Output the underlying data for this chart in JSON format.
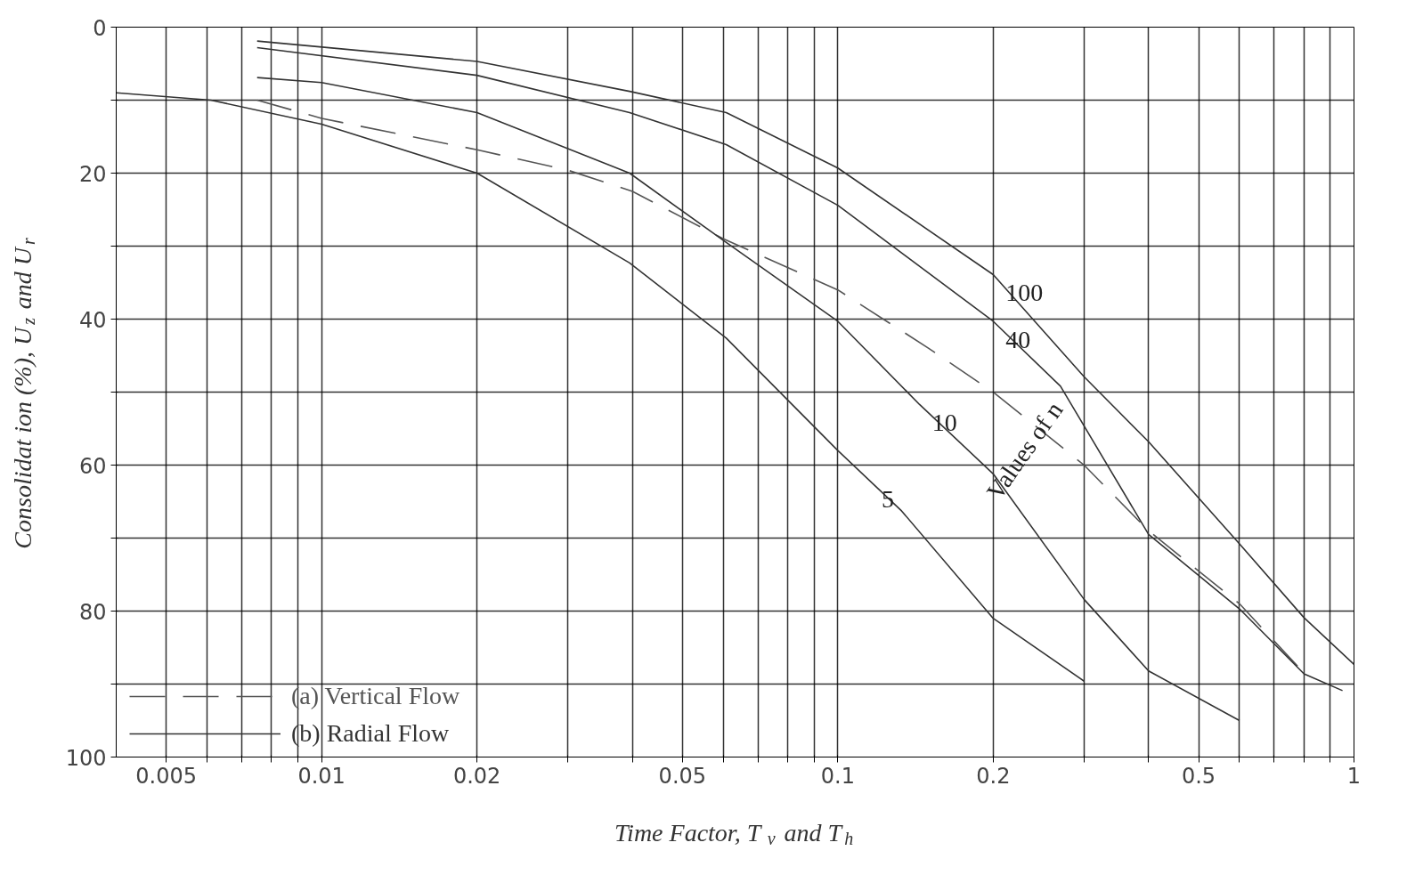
{
  "chart_data": {
    "type": "line",
    "xlabel": "Time Factor, T$_{v}$ and T$_{h}$",
    "ylabel": "Consolidat ion (%), U$_{z}$ and U$_{r}$",
    "log": "x",
    "grid": true,
    "legend": "bottom left",
    "xlim": [
      0.004,
      1
    ],
    "ylim": [
      100,
      0
    ],
    "xticks": [
      0.005,
      {
        "value": 0.006,
        "label": null
      },
      {
        "value": 0.007,
        "label": null
      },
      {
        "value": 0.008,
        "label": null
      },
      {
        "value": 0.009,
        "label": null
      },
      0.01,
      0.02,
      {
        "value": 0.03,
        "label": null
      },
      {
        "value": 0.04,
        "label": null
      },
      0.05,
      {
        "value": 0.06,
        "label": null
      },
      {
        "value": 0.07,
        "label": null
      },
      {
        "value": 0.08,
        "label": null
      },
      {
        "value": 0.09,
        "label": null
      },
      0.1,
      0.2,
      {
        "value": 0.3,
        "label": null
      },
      {
        "value": 0.4,
        "label": null
      },
      0.5,
      {
        "value": 0.6,
        "label": null
      },
      {
        "value": 0.7,
        "label": null
      },
      {
        "value": 0.8,
        "label": null
      },
      {
        "value": 0.9,
        "label": null
      },
      1
    ],
    "yticks": [
      0,
      {
        "value": 10,
        "label": null
      },
      20,
      {
        "value": 30,
        "label": null
      },
      40,
      {
        "value": 50,
        "label": null
      },
      60,
      {
        "value": 70,
        "label": null
      },
      80,
      {
        "value": 90,
        "label": null
      },
      100
    ],
    "series": [
      {
        "name": "(a) Vertical Flow",
        "color": "#555555",
        "line_style": "dashed",
        "x": [
          0.0075,
          0.01,
          0.02,
          0.03,
          0.04,
          0.06,
          0.1,
          0.15,
          0.2,
          0.3,
          0.4,
          0.6,
          0.8
        ],
        "values": [
          10,
          12.5,
          16.8,
          19.6,
          22.5,
          29,
          36,
          44,
          50,
          60,
          69,
          79,
          88.5
        ]
      },
      {
        "name": "(b) Radial Flow",
        "color": "#333333",
        "line_style": "solid",
        "x": [
          0.004,
          0.0061,
          0.01,
          0.02,
          0.0395,
          0.0608,
          0.1,
          0.133,
          0.2,
          0.3
        ],
        "values": [
          9,
          10,
          13.3,
          20,
          32.3,
          42.6,
          58,
          66.3,
          81,
          89.6
        ]
      },
      {
        "color": "#333333",
        "line_style": "solid",
        "x": [
          0.0075,
          0.01,
          0.02,
          0.0395,
          0.0608,
          0.1,
          0.144,
          0.2,
          0.3,
          0.4,
          0.6
        ],
        "values": [
          6.9,
          7.6,
          11.7,
          20,
          29.5,
          40.3,
          51.7,
          61.2,
          78.4,
          88.2,
          95
        ]
      },
      {
        "color": "#333333",
        "line_style": "solid",
        "x": [
          0.0075,
          0.02,
          0.0395,
          0.0608,
          0.1,
          0.2,
          0.27,
          0.4,
          0.6,
          0.8,
          0.95
        ],
        "values": [
          2.8,
          6.6,
          11.7,
          16.1,
          24.4,
          40.3,
          49.2,
          69.5,
          79.7,
          88.6,
          90.9
        ]
      },
      {
        "color": "#333333",
        "line_style": "solid",
        "x": [
          0.0075,
          0.02,
          0.0395,
          0.0608,
          0.1,
          0.2,
          0.3,
          0.4,
          0.6,
          0.8,
          1
        ],
        "values": [
          1.9,
          4.7,
          8.8,
          11.7,
          19.3,
          33.9,
          47.9,
          56.8,
          70.8,
          80.9,
          87.3
        ]
      }
    ],
    "annotations": [
      {
        "text": "100",
        "x": 0.2,
        "y": 33.9
      },
      {
        "text": "40",
        "x": 0.2,
        "y": 40.3
      },
      {
        "text": "10",
        "x": 0.144,
        "y": 51.7
      },
      {
        "text": "5",
        "x": 0.115,
        "y": 62.1
      },
      "Values of n"
    ]
  }
}
